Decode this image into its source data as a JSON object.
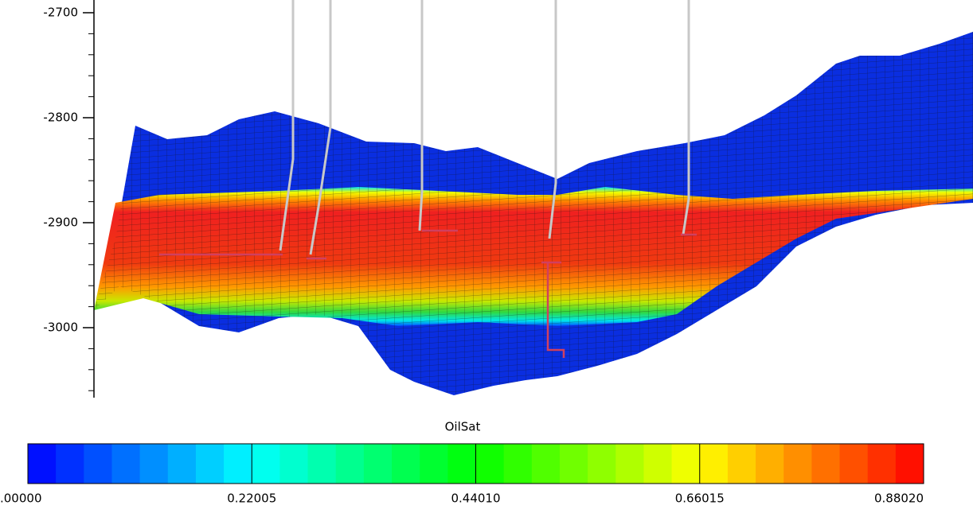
{
  "depth_axis": {
    "ticks": [
      -2700,
      -2800,
      -2900,
      -3000
    ]
  },
  "colorbar": {
    "title": "OilSat",
    "labels": [
      ".00000",
      "0.22005",
      "0.44010",
      "0.66015",
      "0.88020"
    ]
  }
}
